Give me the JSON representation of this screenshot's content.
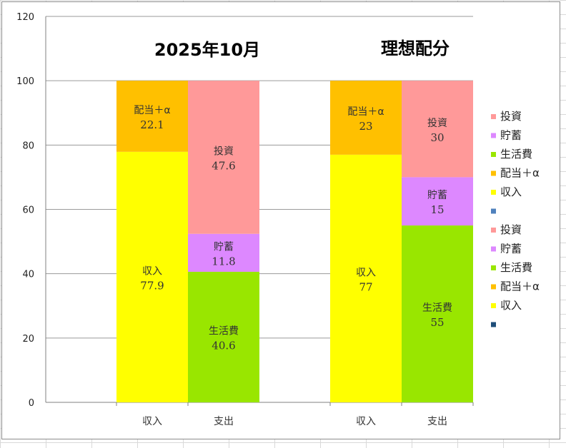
{
  "chart_data": {
    "type": "stacked-bar",
    "titles": [
      "2025年10月",
      "理想配分"
    ],
    "ylim": [
      0,
      120
    ],
    "yticks": [
      0,
      20,
      40,
      60,
      80,
      100,
      120
    ],
    "groups": [
      {
        "title": "2025年10月",
        "bars": [
          {
            "category": "収入",
            "segments": [
              {
                "name": "収入",
                "value": 77.9,
                "display": "77.9",
                "color": "#FFFF00"
              },
              {
                "name": "配当＋α",
                "value": 22.1,
                "display": "22.1",
                "color": "#FFC000"
              }
            ]
          },
          {
            "category": "支出",
            "segments": [
              {
                "name": "生活費",
                "value": 40.6,
                "display": "40.6",
                "color": "#99E600"
              },
              {
                "name": "貯蓄",
                "value": 11.8,
                "display": "11.8",
                "color": "#DD88FF"
              },
              {
                "name": "投資",
                "value": 47.6,
                "display": "47.6",
                "color": "#FF9999"
              }
            ]
          }
        ]
      },
      {
        "title": "理想配分",
        "bars": [
          {
            "category": "収入",
            "segments": [
              {
                "name": "収入",
                "value": 77,
                "display": "77",
                "color": "#FFFF00"
              },
              {
                "name": "配当＋α",
                "value": 23,
                "display": "23",
                "color": "#FFC000"
              }
            ]
          },
          {
            "category": "支出",
            "segments": [
              {
                "name": "生活費",
                "value": 55,
                "display": "55",
                "color": "#99E600"
              },
              {
                "name": "貯蓄",
                "value": 15,
                "display": "15",
                "color": "#DD88FF"
              },
              {
                "name": "投資",
                "value": 30,
                "display": "30",
                "color": "#FF9999"
              }
            ]
          }
        ]
      }
    ],
    "legend": [
      {
        "label": "投資",
        "color": "#FF9999"
      },
      {
        "label": "貯蓄",
        "color": "#DD88FF"
      },
      {
        "label": "生活費",
        "color": "#99E600"
      },
      {
        "label": "配当＋α",
        "color": "#FFC000"
      },
      {
        "label": "収入",
        "color": "#FFFF00"
      },
      {
        "label": "",
        "color": "#4F81BD"
      },
      {
        "label": "投資",
        "color": "#FF9999"
      },
      {
        "label": "貯蓄",
        "color": "#DD88FF"
      },
      {
        "label": "生活費",
        "color": "#99E600"
      },
      {
        "label": "配当＋α",
        "color": "#FFC000"
      },
      {
        "label": "収入",
        "color": "#FFFF00"
      },
      {
        "label": "",
        "color": "#1F4E79"
      }
    ],
    "grid": true,
    "legend_position": "right"
  }
}
